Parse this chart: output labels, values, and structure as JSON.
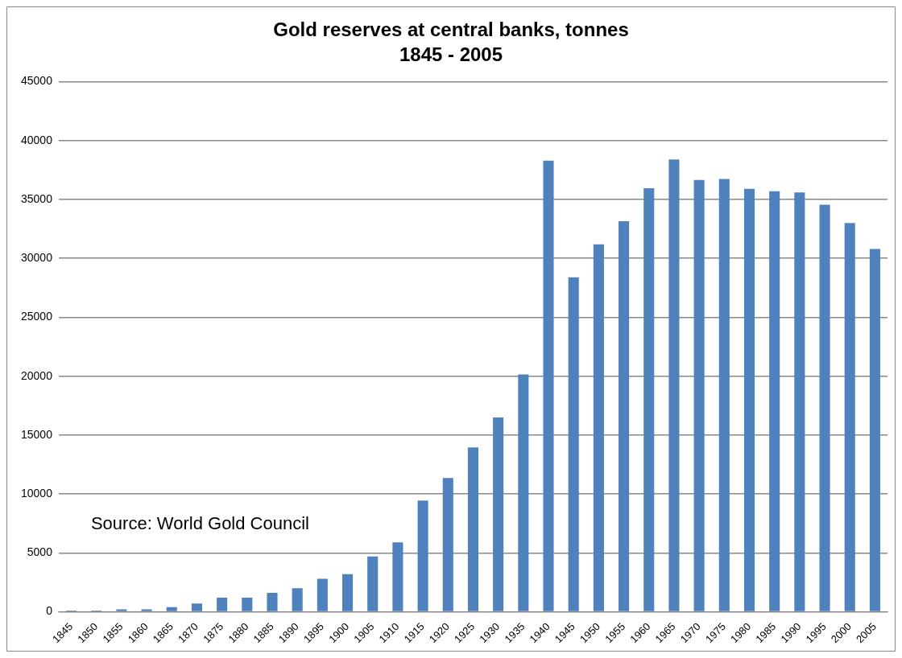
{
  "chart_data": {
    "type": "bar",
    "title": "Gold reserves at central banks, tonnes",
    "subtitle": "1845 - 2005",
    "categories": [
      "1845",
      "1850",
      "1855",
      "1860",
      "1865",
      "1870",
      "1875",
      "1880",
      "1885",
      "1890",
      "1895",
      "1900",
      "1905",
      "1910",
      "1915",
      "1920",
      "1925",
      "1930",
      "1935",
      "1940",
      "1945",
      "1950",
      "1955",
      "1960",
      "1965",
      "1970",
      "1975",
      "1980",
      "1985",
      "1990",
      "1995",
      "2000",
      "2005"
    ],
    "values": [
      100,
      100,
      200,
      200,
      400,
      700,
      1200,
      1200,
      1600,
      2000,
      2800,
      3200,
      4700,
      5900,
      9450,
      11350,
      13950,
      16500,
      20150,
      38300,
      28400,
      31200,
      33150,
      35950,
      38400,
      36650,
      36750,
      35900,
      35700,
      35600,
      34550,
      33000,
      30800
    ],
    "color": "#4f81bd",
    "ylim": [
      0,
      45000
    ],
    "yticks": [
      0,
      5000,
      10000,
      15000,
      20000,
      25000,
      30000,
      35000,
      40000,
      45000
    ],
    "grid": "y",
    "legend": false,
    "annotations": [
      "Source: World Gold Council"
    ]
  }
}
